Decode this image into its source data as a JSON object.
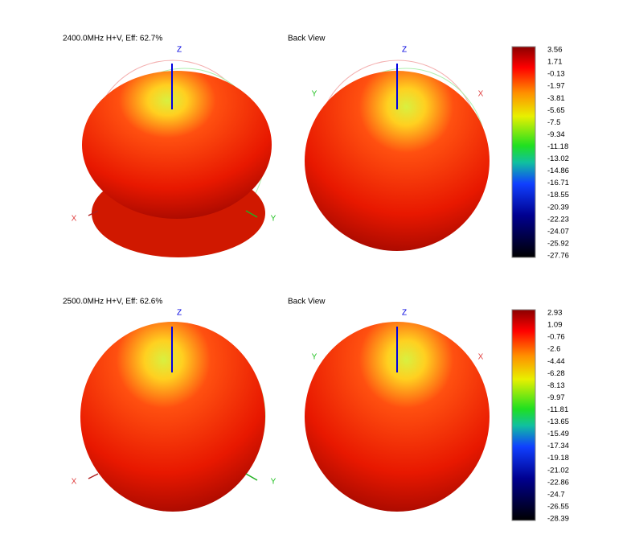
{
  "panels": [
    {
      "title": "2400.0MHz H+V, Eff: 62.7%",
      "back_title": "Back View",
      "front_axes": {
        "z": "Z",
        "x": "X",
        "y": "Y"
      },
      "back_axes": {
        "z": "Z",
        "y": "Y",
        "x": "X"
      },
      "colorbar": [
        "3.56",
        "1.71",
        "-0.13",
        "-1.97",
        "-3.81",
        "-5.65",
        "-7.5",
        "-9.34",
        "-11.18",
        "-13.02",
        "-14.86",
        "-16.71",
        "-18.55",
        "-20.39",
        "-22.23",
        "-24.07",
        "-25.92",
        "-27.76"
      ]
    },
    {
      "title": "2500.0MHz H+V, Eff: 62.6%",
      "back_title": "Back View",
      "front_axes": {
        "z": "Z",
        "x": "X",
        "y": "Y"
      },
      "back_axes": {
        "z": "Z",
        "y": "Y",
        "x": "X"
      },
      "colorbar": [
        "2.93",
        "1.09",
        "-0.76",
        "-2.6",
        "-4.44",
        "-6.28",
        "-8.13",
        "-9.97",
        "-11.81",
        "-13.65",
        "-15.49",
        "-17.34",
        "-19.18",
        "-21.02",
        "-22.86",
        "-24.7",
        "-26.55",
        "-28.39"
      ]
    }
  ]
}
